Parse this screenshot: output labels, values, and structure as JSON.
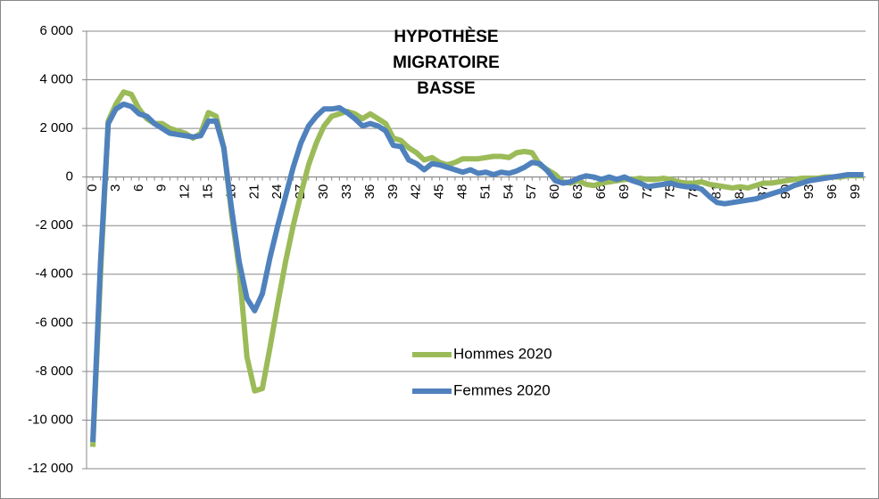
{
  "chart_data": {
    "type": "line",
    "title": [
      "HYPOTHÈSE",
      "MIGRATOIRE",
      "BASSE"
    ],
    "categories": [
      "0",
      null,
      null,
      "3",
      null,
      null,
      "6",
      null,
      null,
      "9",
      null,
      null,
      "12",
      null,
      null,
      "15",
      null,
      null,
      "18",
      null,
      null,
      "21",
      null,
      null,
      "24",
      null,
      null,
      "27",
      null,
      null,
      "30",
      null,
      null,
      "33",
      null,
      null,
      "36",
      null,
      null,
      "39",
      null,
      null,
      "42",
      null,
      null,
      "45",
      null,
      null,
      "48",
      null,
      null,
      "51",
      null,
      null,
      "54",
      null,
      null,
      "57",
      null,
      null,
      "60",
      null,
      null,
      "63",
      null,
      null,
      "66",
      null,
      null,
      "69",
      null,
      null,
      "72",
      null,
      null,
      "75",
      null,
      null,
      "78",
      null,
      null,
      "81",
      null,
      null,
      "84",
      null,
      null,
      "87",
      null,
      null,
      "90",
      null,
      null,
      "93",
      null,
      null,
      "96",
      null,
      null,
      "99",
      null
    ],
    "series": [
      {
        "name": "Hommes 2020",
        "color": "#9bbb59",
        "values": [
          -11100,
          -4000,
          2300,
          3000,
          3500,
          3400,
          2800,
          2400,
          2200,
          2200,
          2000,
          1900,
          1800,
          1600,
          1800,
          2650,
          2500,
          1200,
          -1500,
          -3800,
          -7400,
          -8800,
          -8700,
          -7000,
          -5200,
          -3500,
          -2000,
          -700,
          500,
          1400,
          2100,
          2500,
          2600,
          2700,
          2600,
          2400,
          2600,
          2400,
          2200,
          1600,
          1500,
          1200,
          1000,
          700,
          800,
          600,
          500,
          600,
          750,
          750,
          750,
          800,
          850,
          850,
          800,
          1000,
          1050,
          1000,
          500,
          300,
          100,
          -200,
          -250,
          -150,
          -300,
          -350,
          -250,
          -200,
          -150,
          -100,
          -100,
          -50,
          -100,
          -100,
          -50,
          -100,
          -200,
          -250,
          -250,
          -200,
          -300,
          -350,
          -400,
          -450,
          -400,
          -450,
          -350,
          -250,
          -250,
          -200,
          -150,
          -100,
          -50,
          -50,
          -50,
          0,
          0,
          0,
          50,
          50,
          50
        ]
      },
      {
        "name": "Femmes 2020",
        "color": "#4f81bd",
        "values": [
          -10900,
          -3500,
          2200,
          2800,
          3000,
          2900,
          2600,
          2500,
          2200,
          2000,
          1800,
          1750,
          1700,
          1650,
          1700,
          2300,
          2300,
          1200,
          -1300,
          -3500,
          -5000,
          -5500,
          -4800,
          -3300,
          -2000,
          -800,
          400,
          1400,
          2100,
          2500,
          2800,
          2800,
          2850,
          2650,
          2400,
          2100,
          2200,
          2100,
          1900,
          1300,
          1250,
          700,
          550,
          300,
          550,
          500,
          400,
          300,
          200,
          300,
          150,
          200,
          100,
          200,
          150,
          250,
          400,
          600,
          550,
          250,
          -150,
          -250,
          -200,
          -50,
          50,
          0,
          -100,
          0,
          -100,
          0,
          -150,
          -250,
          -400,
          -350,
          -300,
          -250,
          -350,
          -400,
          -400,
          -500,
          -800,
          -1050,
          -1100,
          -1050,
          -1000,
          -950,
          -900,
          -800,
          -700,
          -600,
          -500,
          -350,
          -250,
          -150,
          -100,
          -50,
          0,
          50,
          100,
          100,
          100
        ]
      }
    ],
    "ylim": [
      -12000,
      6000
    ],
    "yticks": [
      {
        "value": -12000,
        "label": "-12 000"
      },
      {
        "value": -10000,
        "label": "-10 000"
      },
      {
        "value": -8000,
        "label": "-8 000"
      },
      {
        "value": -6000,
        "label": "-6 000"
      },
      {
        "value": -4000,
        "label": "-4 000"
      },
      {
        "value": -2000,
        "label": "-2 000"
      },
      0,
      {
        "value": 2000,
        "label": "2 000"
      },
      {
        "value": 4000,
        "label": "4 000"
      },
      {
        "value": 6000,
        "label": "6 000"
      }
    ],
    "grid": true,
    "legend": "lower center"
  }
}
